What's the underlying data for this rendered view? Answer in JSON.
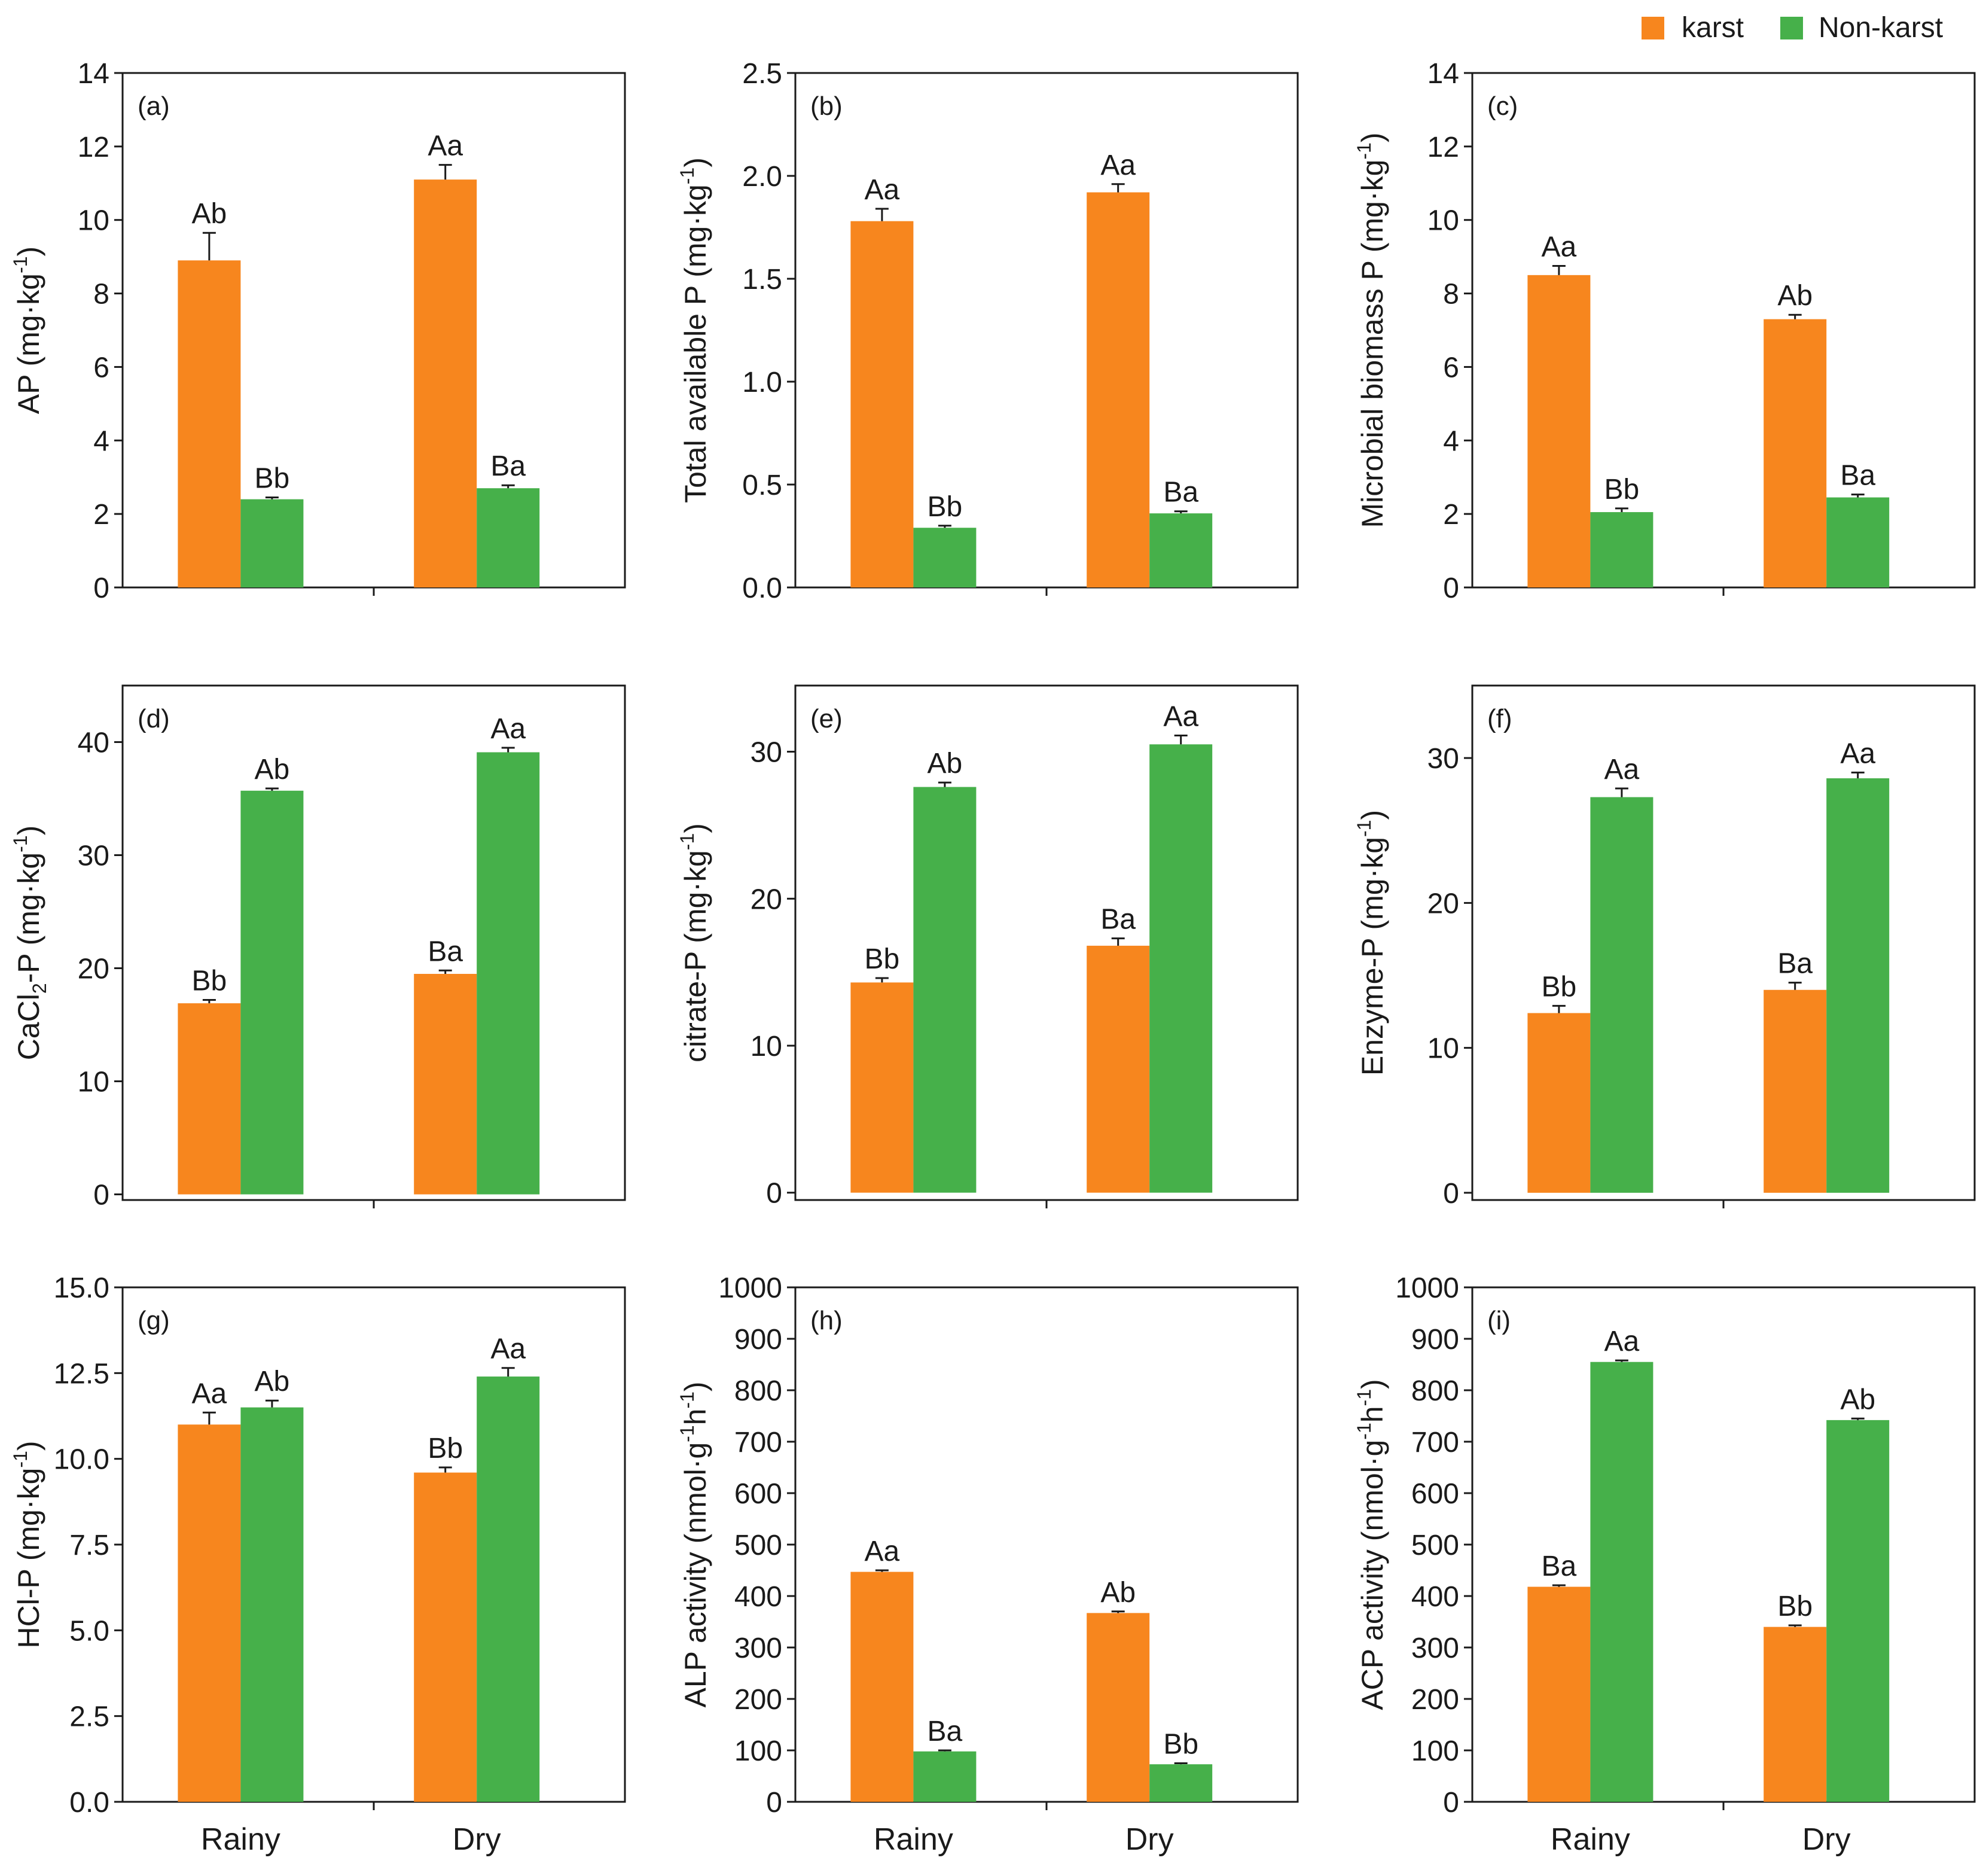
{
  "colors": {
    "karst": "#F7861E",
    "nonkarst": "#46B04A",
    "axis": "#1a1a1a"
  },
  "legend": {
    "placement": "top-right",
    "items": [
      {
        "label": "karst",
        "color": "#F7861E"
      },
      {
        "label": "Non-karst",
        "color": "#46B04A"
      }
    ]
  },
  "chart_data": [
    {
      "panel": "(a)",
      "type": "bar",
      "categories": [
        "Rainy",
        "Dry"
      ],
      "show_xticks": false,
      "ylabel": "AP (mg·kg",
      "ylabel_sup": "-1",
      "ylabel_end": ")",
      "ylim": [
        0,
        14
      ],
      "yticks": [
        "0",
        "2",
        "4",
        "6",
        "8",
        "10",
        "12",
        "14"
      ],
      "series": [
        {
          "name": "karst",
          "values": [
            8.9,
            11.1
          ],
          "errors": [
            0.75,
            0.4
          ],
          "labels": [
            "Ab",
            "Aa"
          ]
        },
        {
          "name": "Non-karst",
          "values": [
            2.4,
            2.7
          ],
          "errors": [
            0.05,
            0.08
          ],
          "labels": [
            "Bb",
            "Ba"
          ]
        }
      ]
    },
    {
      "panel": "(b)",
      "type": "bar",
      "categories": [
        "Rainy",
        "Dry"
      ],
      "show_xticks": false,
      "ylabel": "Total available P (mg·kg",
      "ylabel_sup": "-1",
      "ylabel_end": ")",
      "ylim": [
        0,
        2.5
      ],
      "yticks": [
        "0.0",
        "0.5",
        "1.0",
        "1.5",
        "2.0",
        "2.5"
      ],
      "series": [
        {
          "name": "karst",
          "values": [
            1.78,
            1.92
          ],
          "errors": [
            0.06,
            0.04
          ],
          "labels": [
            "Aa",
            "Aa"
          ]
        },
        {
          "name": "Non-karst",
          "values": [
            0.29,
            0.36
          ],
          "errors": [
            0.01,
            0.01
          ],
          "labels": [
            "Bb",
            "Ba"
          ]
        }
      ]
    },
    {
      "panel": "(c)",
      "type": "bar",
      "categories": [
        "Rainy",
        "Dry"
      ],
      "show_xticks": false,
      "ylabel": "Microbial biomass P (mg·kg",
      "ylabel_sup": "-1",
      "ylabel_end": ")",
      "ylim": [
        0,
        14
      ],
      "yticks": [
        "0",
        "2",
        "4",
        "6",
        "8",
        "10",
        "12",
        "14"
      ],
      "series": [
        {
          "name": "karst",
          "values": [
            8.5,
            7.3
          ],
          "errors": [
            0.25,
            0.12
          ],
          "labels": [
            "Aa",
            "Ab"
          ]
        },
        {
          "name": "Non-karst",
          "values": [
            2.05,
            2.45
          ],
          "errors": [
            0.1,
            0.08
          ],
          "labels": [
            "Bb",
            "Ba"
          ]
        }
      ]
    },
    {
      "panel": "(d)",
      "type": "bar",
      "categories": [
        "Rainy",
        "Dry"
      ],
      "show_xticks": false,
      "ylabel": "CaCl",
      "ylabel_sub": "2",
      "ylabel_after_sub": "-P (mg·kg",
      "ylabel_sup": "-1",
      "ylabel_end": ")",
      "ylim": [
        -0.5,
        45
      ],
      "yticks": [
        "0",
        "10",
        "20",
        "30",
        "40"
      ],
      "series": [
        {
          "name": "karst",
          "values": [
            16.9,
            19.5
          ],
          "errors": [
            0.3,
            0.3
          ],
          "labels": [
            "Bb",
            "Ba"
          ]
        },
        {
          "name": "Non-karst",
          "values": [
            35.7,
            39.1
          ],
          "errors": [
            0.2,
            0.4
          ],
          "labels": [
            "Ab",
            "Aa"
          ]
        }
      ]
    },
    {
      "panel": "(e)",
      "type": "bar",
      "categories": [
        "Rainy",
        "Dry"
      ],
      "show_xticks": false,
      "ylabel": "citrate-P (mg·kg",
      "ylabel_sup": "-1",
      "ylabel_end": ")",
      "ylim": [
        -0.5,
        34.5
      ],
      "yticks": [
        "0",
        "10",
        "20",
        "30"
      ],
      "series": [
        {
          "name": "karst",
          "values": [
            14.3,
            16.8
          ],
          "errors": [
            0.3,
            0.5
          ],
          "labels": [
            "Bb",
            "Ba"
          ]
        },
        {
          "name": "Non-karst",
          "values": [
            27.6,
            30.5
          ],
          "errors": [
            0.3,
            0.6
          ],
          "labels": [
            "Ab",
            "Aa"
          ]
        }
      ]
    },
    {
      "panel": "(f)",
      "type": "bar",
      "categories": [
        "Rainy",
        "Dry"
      ],
      "show_xticks": false,
      "ylabel": "Enzyme-P (mg·kg",
      "ylabel_sup": "-1",
      "ylabel_end": ")",
      "ylim": [
        -0.5,
        35
      ],
      "yticks": [
        "0",
        "10",
        "20",
        "30"
      ],
      "series": [
        {
          "name": "karst",
          "values": [
            12.4,
            14.0
          ],
          "errors": [
            0.5,
            0.5
          ],
          "labels": [
            "Bb",
            "Ba"
          ]
        },
        {
          "name": "Non-karst",
          "values": [
            27.3,
            28.6
          ],
          "errors": [
            0.6,
            0.4
          ],
          "labels": [
            "Aa",
            "Aa"
          ]
        }
      ]
    },
    {
      "panel": "(g)",
      "type": "bar",
      "categories": [
        "Rainy",
        "Dry"
      ],
      "show_xticks": true,
      "ylabel": "HCl-P (mg·kg",
      "ylabel_sup": "-1",
      "ylabel_end": ")",
      "ylim": [
        0,
        15
      ],
      "yticks": [
        "0.0",
        "2.5",
        "5.0",
        "7.5",
        "10.0",
        "12.5",
        "15.0"
      ],
      "series": [
        {
          "name": "karst",
          "values": [
            11.0,
            9.6
          ],
          "errors": [
            0.35,
            0.15
          ],
          "labels": [
            "Aa",
            "Bb"
          ]
        },
        {
          "name": "Non-karst",
          "values": [
            11.5,
            12.4
          ],
          "errors": [
            0.2,
            0.25
          ],
          "labels": [
            "Ab",
            "Aa"
          ]
        }
      ]
    },
    {
      "panel": "(h)",
      "type": "bar",
      "categories": [
        "Rainy",
        "Dry"
      ],
      "show_xticks": true,
      "ylabel": "ALP activity (nmol·g",
      "ylabel_sup": "-1",
      "ylabel_mid": "h",
      "ylabel_sup2": "-1",
      "ylabel_end": ")",
      "ylim": [
        0,
        1000
      ],
      "yticks": [
        "0",
        "100",
        "200",
        "300",
        "400",
        "500",
        "600",
        "700",
        "800",
        "900",
        "1000"
      ],
      "series": [
        {
          "name": "karst",
          "values": [
            447,
            367
          ],
          "errors": [
            3,
            3
          ],
          "labels": [
            "Aa",
            "Ab"
          ]
        },
        {
          "name": "Non-karst",
          "values": [
            98,
            73
          ],
          "errors": [
            2,
            2
          ],
          "labels": [
            "Ba",
            "Bb"
          ]
        }
      ]
    },
    {
      "panel": "(i)",
      "type": "bar",
      "categories": [
        "Rainy",
        "Dry"
      ],
      "show_xticks": true,
      "ylabel": "ACP activity (nmol·g",
      "ylabel_sup": "-1",
      "ylabel_mid": "h",
      "ylabel_sup2": "-1",
      "ylabel_end": ")",
      "ylim": [
        0,
        1000
      ],
      "yticks": [
        "0",
        "100",
        "200",
        "300",
        "400",
        "500",
        "600",
        "700",
        "800",
        "900",
        "1000"
      ],
      "series": [
        {
          "name": "karst",
          "values": [
            418,
            340
          ],
          "errors": [
            3,
            3
          ],
          "labels": [
            "Ba",
            "Bb"
          ]
        },
        {
          "name": "Non-karst",
          "values": [
            855,
            742
          ],
          "errors": [
            3,
            3
          ],
          "labels": [
            "Aa",
            "Ab"
          ]
        }
      ]
    }
  ]
}
